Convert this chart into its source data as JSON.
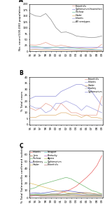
{
  "years": [
    1995,
    1996,
    1997,
    1998,
    1999,
    2000,
    2001,
    2002,
    2003,
    2004,
    2005,
    2006,
    2007,
    2008,
    2009
  ],
  "panel_A": {
    "title": "A",
    "ylabel": "No. cases/100,000 population",
    "all_serotypes": [
      160,
      150,
      148,
      160,
      135,
      100,
      80,
      82,
      75,
      65,
      62,
      60,
      58,
      60,
      65
    ],
    "enteritidis": [
      28,
      26,
      30,
      38,
      28,
      22,
      26,
      22,
      18,
      16,
      14,
      12,
      12,
      14,
      30
    ],
    "typhimurium": [
      18,
      18,
      18,
      18,
      18,
      18,
      18,
      18,
      18,
      18,
      18,
      18,
      18,
      18,
      18
    ],
    "virchow": [
      22,
      20,
      18,
      14,
      16,
      18,
      14,
      16,
      14,
      12,
      10,
      10,
      8,
      7,
      6
    ],
    "infantis": [
      10,
      10,
      10,
      10,
      10,
      8,
      8,
      8,
      7,
      6,
      5,
      5,
      5,
      4,
      4
    ],
    "stanley": [
      6,
      8,
      6,
      6,
      5,
      5,
      4,
      5,
      4,
      3,
      3,
      3,
      3,
      2,
      3
    ],
    "legend": [
      "Enteritidis",
      "Typhimurium/muenchen",
      "Virchow",
      "Hadar",
      "Infantis",
      "All serotypes"
    ],
    "colors": [
      "#e8a090",
      "#9090e0",
      "#70c0a0",
      "#e0b070",
      "#a0a0e0",
      "#888888"
    ],
    "ylim": [
      0,
      200
    ]
  },
  "panel_B": {
    "title": "B",
    "ylabel": "% Total cases",
    "enteritidis": [
      14,
      12,
      14,
      18,
      16,
      12,
      18,
      14,
      10,
      10,
      8,
      8,
      8,
      8,
      24
    ],
    "typhimurium": [
      22,
      24,
      24,
      24,
      24,
      24,
      28,
      30,
      32,
      34,
      34,
      32,
      28,
      22,
      16
    ],
    "virchow": [
      16,
      14,
      14,
      10,
      12,
      18,
      18,
      20,
      18,
      16,
      12,
      16,
      14,
      12,
      10
    ],
    "infantis": [
      6,
      6,
      8,
      8,
      8,
      8,
      10,
      10,
      8,
      8,
      6,
      8,
      6,
      6,
      5
    ],
    "stanley": [
      4,
      4,
      4,
      4,
      4,
      4,
      4,
      4,
      4,
      4,
      4,
      4,
      4,
      4,
      4
    ],
    "legend": [
      "Enteritidis",
      "Infantis",
      "Hadar",
      "Stanley",
      "Typhimurium"
    ],
    "colors": [
      "#e8a090",
      "#a0a0e0",
      "#e0b070",
      "#c0c0c0",
      "#9090d8"
    ],
    "ylim": [
      0,
      40
    ]
  },
  "panel_C": {
    "title": "C",
    "ylabel": "% Total Salmonella confirmed isolates",
    "infantis": [
      2,
      3,
      3,
      4,
      5,
      5,
      7,
      9,
      12,
      16,
      22,
      28,
      35,
      44,
      58
    ],
    "java": [
      4,
      5,
      4,
      4,
      5,
      5,
      4,
      5,
      6,
      6,
      7,
      7,
      6,
      5,
      5
    ],
    "virchow": [
      12,
      14,
      18,
      20,
      22,
      24,
      26,
      28,
      26,
      22,
      18,
      14,
      10,
      8,
      5
    ],
    "bredeney": [
      6,
      7,
      6,
      7,
      8,
      9,
      9,
      10,
      9,
      8,
      7,
      5,
      4,
      4,
      3
    ],
    "hadar": [
      20,
      18,
      16,
      14,
      12,
      10,
      9,
      7,
      6,
      6,
      6,
      5,
      4,
      4,
      3
    ],
    "newport": [
      4,
      5,
      5,
      5,
      5,
      5,
      5,
      5,
      5,
      5,
      4,
      4,
      4,
      4,
      3
    ],
    "kentucky": [
      3,
      3,
      3,
      3,
      3,
      3,
      4,
      4,
      4,
      4,
      4,
      3,
      3,
      3,
      3
    ],
    "agona": [
      4,
      4,
      4,
      4,
      4,
      4,
      4,
      4,
      4,
      3,
      3,
      3,
      3,
      3,
      2
    ],
    "typhimurium2": [
      4,
      4,
      3,
      3,
      3,
      3,
      3,
      3,
      2,
      2,
      2,
      2,
      2,
      2,
      2
    ],
    "enteritidis2": [
      3,
      3,
      2,
      2,
      2,
      2,
      2,
      2,
      2,
      2,
      2,
      2,
      2,
      2,
      2
    ],
    "legend_left": [
      "Infantis",
      "Java",
      "Virchow",
      "Bredeney",
      "Hadar"
    ],
    "legend_right": [
      "Newport",
      "Kentucky",
      "Agona",
      "Typhimurium",
      "Enteritidis"
    ],
    "colors_left": [
      "#e86060",
      "#996633",
      "#70b870",
      "#6060c0",
      "#e0c060"
    ],
    "colors_right": [
      "#60c0c0",
      "#c060c0",
      "#c0c060",
      "#80c080",
      "#c08080"
    ],
    "ylim": [
      0,
      65
    ]
  },
  "background": "#ffffff"
}
